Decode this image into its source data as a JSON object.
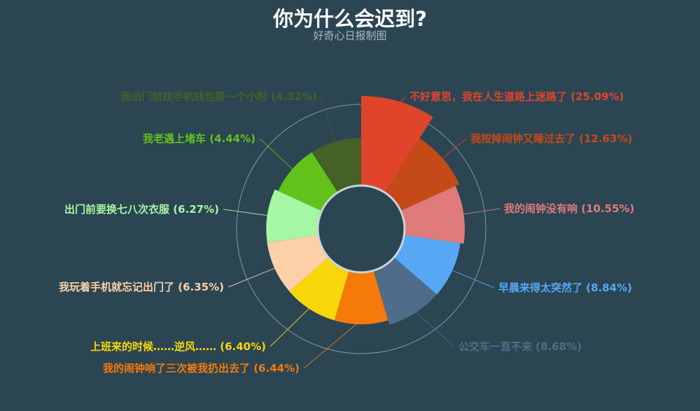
{
  "chart_data": {
    "type": "pie",
    "variant": "rose-radius",
    "title": "你为什么会迟到?",
    "subtitle": "好奇心日报制图",
    "legend": "none",
    "slices": [
      {
        "label": "不好意思，我在人生道路上迷路了",
        "value": 25.09,
        "display": "(25.09%)",
        "color": "#e0452c"
      },
      {
        "label": "我按掉闹钟又睡过去了",
        "value": 12.63,
        "display": "(12.63%)",
        "color": "#c64a17"
      },
      {
        "label": "我的闹钟没有响",
        "value": 10.55,
        "display": "(10.55%)",
        "color": "#e07b7b"
      },
      {
        "label": "早晨来得太突然了",
        "value": 8.84,
        "display": "(8.84%)",
        "color": "#56a8f5"
      },
      {
        "label": "公交车一直不来",
        "value": 8.68,
        "display": "(8.68%)",
        "color": "#4f6c8a"
      },
      {
        "label": "我的闹钟响了三次被我扔出去了",
        "value": 6.44,
        "display": "(6.44%)",
        "color": "#f57a0a"
      },
      {
        "label": "上班来的时候……逆风……",
        "value": 6.4,
        "display": "(6.40%)",
        "color": "#f8d70a"
      },
      {
        "label": "我玩着手机就忘记出门了",
        "value": 6.35,
        "display": "(6.35%)",
        "color": "#fdd0a8"
      },
      {
        "label": "出门前要换七八次衣服",
        "value": 6.27,
        "display": "(6.27%)",
        "color": "#a6f7a4"
      },
      {
        "label": "我老遇上堵车",
        "value": 4.44,
        "display": "(4.44%)",
        "color": "#62c21a"
      },
      {
        "label": "我出门前找手机钱包要一个小时",
        "value": 4.32,
        "display": "(4.32%)",
        "color": "#456127"
      }
    ]
  }
}
